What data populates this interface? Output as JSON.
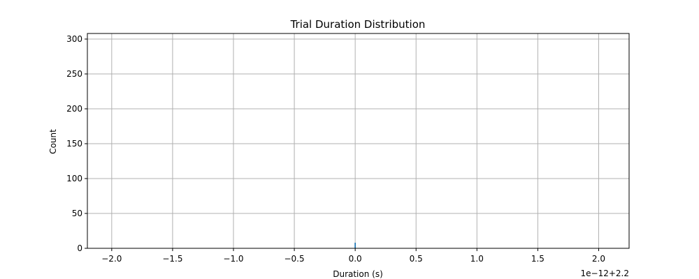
{
  "chart_data": {
    "type": "bar",
    "title": "Trial Duration Distribution",
    "xlabel": "Duration (s)",
    "ylabel": "Count",
    "x_offset_label": "1e−12+2.2",
    "xlim": [
      -2.2,
      2.25
    ],
    "ylim": [
      0,
      308
    ],
    "xticks": [
      {
        "value": -2.0,
        "label": "−2.0"
      },
      {
        "value": -1.5,
        "label": "−1.5"
      },
      {
        "value": -1.0,
        "label": "−1.0"
      },
      {
        "value": -0.5,
        "label": "−0.5"
      },
      {
        "value": 0.0,
        "label": "0.0"
      },
      {
        "value": 0.5,
        "label": "0.5"
      },
      {
        "value": 1.0,
        "label": "1.0"
      },
      {
        "value": 1.5,
        "label": "1.5"
      },
      {
        "value": 2.0,
        "label": "2.0"
      }
    ],
    "yticks": [
      {
        "value": 0,
        "label": "0"
      },
      {
        "value": 50,
        "label": "50"
      },
      {
        "value": 100,
        "label": "100"
      },
      {
        "value": 150,
        "label": "150"
      },
      {
        "value": 200,
        "label": "200"
      },
      {
        "value": 250,
        "label": "250"
      },
      {
        "value": 300,
        "label": "300"
      }
    ],
    "grid": true,
    "bars": [
      {
        "x": 0.0,
        "width": 0.01,
        "value": 8
      }
    ],
    "bar_color": "#1f77b4"
  }
}
